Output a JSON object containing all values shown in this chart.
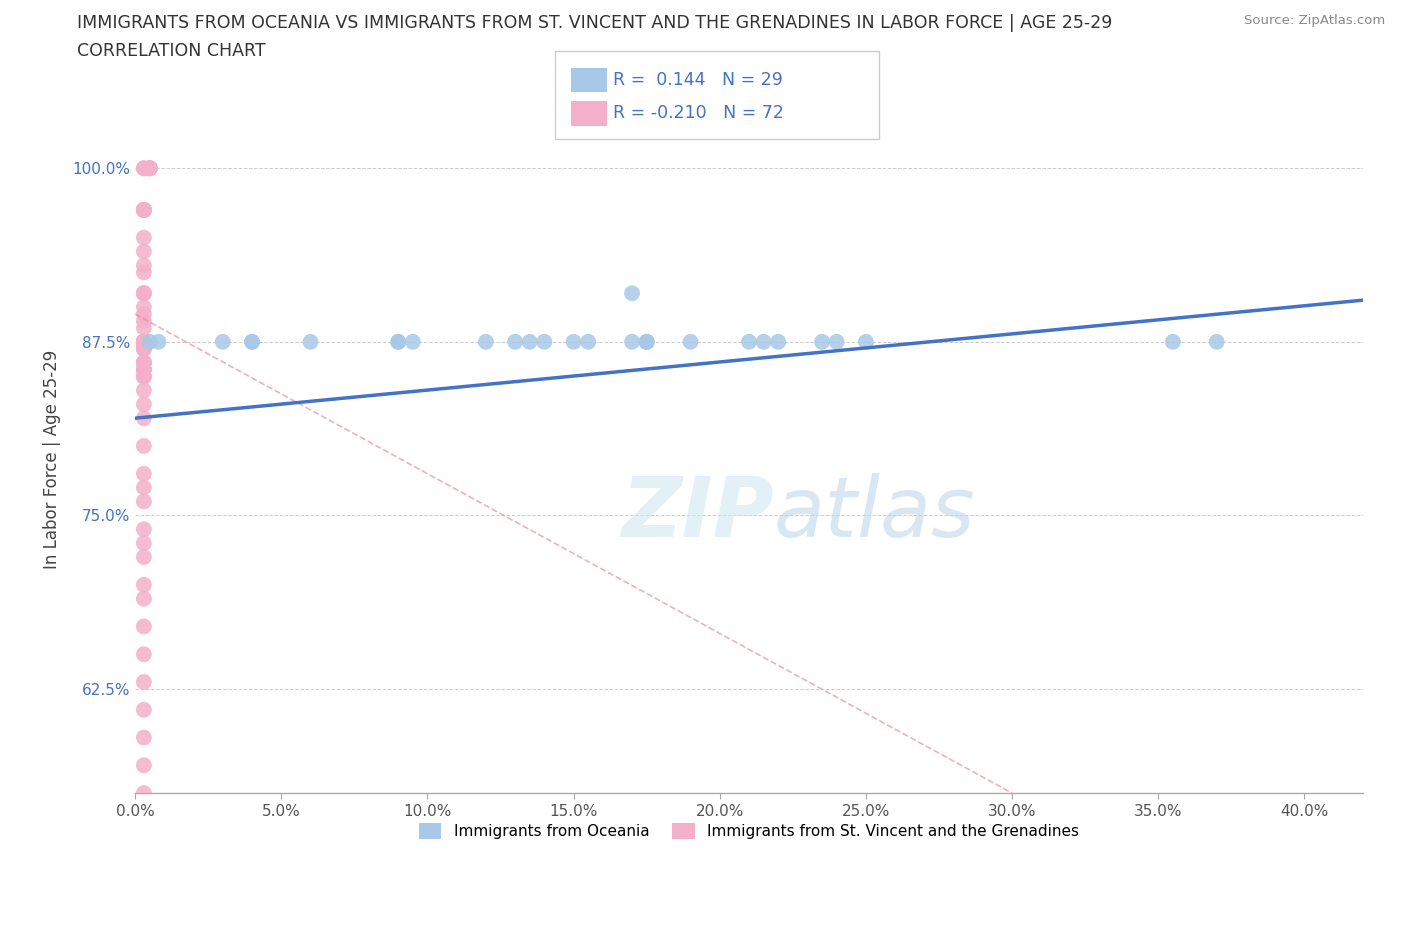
{
  "title_line1": "IMMIGRANTS FROM OCEANIA VS IMMIGRANTS FROM ST. VINCENT AND THE GRENADINES IN LABOR FORCE | AGE 25-29",
  "title_line2": "CORRELATION CHART",
  "source_text": "Source: ZipAtlas.com",
  "ylabel": "In Labor Force | Age 25-29",
  "r_oceania": 0.144,
  "n_oceania": 29,
  "r_stvincent": -0.21,
  "n_stvincent": 72,
  "legend_label_oceania": "Immigrants from Oceania",
  "legend_label_stvincent": "Immigrants from St. Vincent and the Grenadines",
  "color_oceania": "#a8c8e8",
  "color_stvincent": "#f4b0c8",
  "line_color_oceania": "#4472c4",
  "line_color_stvincent": "#e08090",
  "xlim": [
    0.0,
    0.42
  ],
  "ylim": [
    0.55,
    1.03
  ],
  "xticks": [
    0.0,
    0.05,
    0.1,
    0.15,
    0.2,
    0.25,
    0.3,
    0.35,
    0.4
  ],
  "yticks": [
    0.625,
    0.75,
    0.875,
    1.0
  ],
  "ytick_labels": [
    "62.5%",
    "75.0%",
    "87.5%",
    "100.0%"
  ],
  "xtick_labels": [
    "0.0%",
    "5.0%",
    "10.0%",
    "15.0%",
    "20.0%",
    "25.0%",
    "30.0%",
    "35.0%",
    "40.0%"
  ],
  "oceania_x": [
    0.005,
    0.008,
    0.17,
    0.03,
    0.04,
    0.09,
    0.09,
    0.22,
    0.24,
    0.15,
    0.155,
    0.13,
    0.19,
    0.135,
    0.095,
    0.12,
    0.17,
    0.175,
    0.21,
    0.25,
    0.06,
    0.14,
    0.235,
    0.175,
    0.215,
    0.175,
    0.37,
    0.04,
    0.355
  ],
  "oceania_y": [
    0.875,
    0.875,
    0.91,
    0.875,
    0.875,
    0.875,
    0.875,
    0.875,
    0.875,
    0.875,
    0.875,
    0.875,
    0.875,
    0.875,
    0.875,
    0.875,
    0.875,
    0.875,
    0.875,
    0.875,
    0.875,
    0.875,
    0.875,
    0.875,
    0.875,
    0.875,
    0.875,
    0.875,
    0.875
  ],
  "stvincent_x": [
    0.005,
    0.005,
    0.005,
    0.005,
    0.005,
    0.003,
    0.003,
    0.003,
    0.003,
    0.003,
    0.003,
    0.003,
    0.003,
    0.003,
    0.003,
    0.003,
    0.003,
    0.003,
    0.003,
    0.003,
    0.003,
    0.003,
    0.003,
    0.003,
    0.003,
    0.003,
    0.003,
    0.003,
    0.003,
    0.003,
    0.003,
    0.003,
    0.003,
    0.003,
    0.003,
    0.003,
    0.003,
    0.003,
    0.003,
    0.003,
    0.003,
    0.003,
    0.003,
    0.003,
    0.003,
    0.003,
    0.003,
    0.003,
    0.003,
    0.003,
    0.003,
    0.003,
    0.003,
    0.003,
    0.003,
    0.003,
    0.003,
    0.003,
    0.003,
    0.003,
    0.003,
    0.003,
    0.003,
    0.003,
    0.003,
    0.003,
    0.003,
    0.003,
    0.003,
    0.003,
    0.003,
    0.003
  ],
  "stvincent_y": [
    1.0,
    1.0,
    1.0,
    1.0,
    1.0,
    1.0,
    1.0,
    0.97,
    0.97,
    0.97,
    0.97,
    0.97,
    0.97,
    0.95,
    0.94,
    0.93,
    0.925,
    0.91,
    0.91,
    0.91,
    0.9,
    0.895,
    0.89,
    0.885,
    0.875,
    0.875,
    0.875,
    0.875,
    0.875,
    0.875,
    0.875,
    0.875,
    0.875,
    0.87,
    0.87,
    0.87,
    0.86,
    0.86,
    0.855,
    0.855,
    0.85,
    0.85,
    0.875,
    0.875,
    0.875,
    0.875,
    0.87,
    0.87,
    0.86,
    0.86,
    0.855,
    0.855,
    0.85,
    0.84,
    0.83,
    0.82,
    0.8,
    0.78,
    0.77,
    0.76,
    0.74,
    0.73,
    0.72,
    0.7,
    0.69,
    0.67,
    0.65,
    0.63,
    0.61,
    0.59,
    0.57,
    0.55
  ],
  "oce_line_x0": 0.0,
  "oce_line_x1": 0.42,
  "oce_line_y0": 0.82,
  "oce_line_y1": 0.905,
  "stv_line_x0": 0.0,
  "stv_line_x1": 0.3,
  "stv_line_y0": 0.895,
  "stv_line_y1": 0.55
}
